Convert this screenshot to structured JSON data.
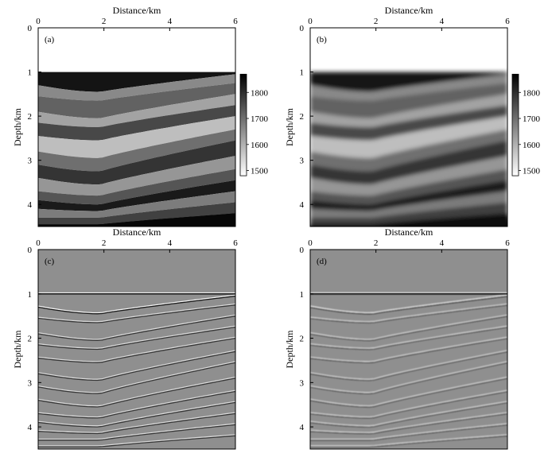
{
  "panels": [
    {
      "key": "a",
      "label": "(a)",
      "type": "velocity_model",
      "smooth": false,
      "show_x_title": true
    },
    {
      "key": "b",
      "label": "(b)",
      "type": "velocity_model",
      "smooth": true,
      "show_x_title": true
    },
    {
      "key": "c",
      "label": "(c)",
      "type": "migration_image",
      "smooth": false,
      "show_x_title": true
    },
    {
      "key": "d",
      "label": "(d)",
      "type": "migration_image",
      "smooth": true,
      "show_x_title": true
    }
  ],
  "axes": {
    "xlabel": "Distance/km",
    "ylabel": "Depth/km",
    "xlim": [
      0,
      6
    ],
    "ylim": [
      0,
      4.5
    ],
    "xticks": [
      "0",
      "2",
      "4",
      "6"
    ],
    "yticks": [
      "0",
      "1",
      "2",
      "3",
      "4"
    ]
  },
  "colorbar": {
    "ticks": [
      "1800",
      "1700",
      "1600",
      "1500"
    ],
    "range": [
      1480,
      1870
    ]
  },
  "chart_data": {
    "type": "heatmap",
    "title": "",
    "xlabel": "Distance/km",
    "ylabel": "Depth/km",
    "xlim": [
      0,
      6
    ],
    "ylim": [
      0,
      4.5
    ],
    "water_bottom_depth_km": 1.0,
    "colorbar_range": [
      1480,
      1870
    ],
    "grid": false,
    "layers": [
      {
        "depth_left": 1.0,
        "depth_min": 1.0,
        "depth_right": 1.0,
        "value": 1840
      },
      {
        "depth_left": 1.3,
        "depth_min": 1.45,
        "depth_right": 1.05,
        "value": 1660
      },
      {
        "depth_left": 1.55,
        "depth_min": 1.65,
        "depth_right": 1.25,
        "value": 1720
      },
      {
        "depth_left": 1.9,
        "depth_min": 2.05,
        "depth_right": 1.5,
        "value": 1620
      },
      {
        "depth_left": 2.15,
        "depth_min": 2.25,
        "depth_right": 1.75,
        "value": 1760
      },
      {
        "depth_left": 2.45,
        "depth_min": 2.55,
        "depth_right": 2.0,
        "value": 1580
      },
      {
        "depth_left": 2.8,
        "depth_min": 2.95,
        "depth_right": 2.3,
        "value": 1700
      },
      {
        "depth_left": 3.1,
        "depth_min": 3.25,
        "depth_right": 2.55,
        "value": 1790
      },
      {
        "depth_left": 3.4,
        "depth_min": 3.55,
        "depth_right": 2.9,
        "value": 1640
      },
      {
        "depth_left": 3.7,
        "depth_min": 3.8,
        "depth_right": 3.2,
        "value": 1740
      },
      {
        "depth_left": 3.9,
        "depth_min": 4.0,
        "depth_right": 3.45,
        "value": 1830
      },
      {
        "depth_left": 4.1,
        "depth_min": 4.15,
        "depth_right": 3.7,
        "value": 1680
      },
      {
        "depth_left": 4.3,
        "depth_min": 4.3,
        "depth_right": 3.95,
        "value": 1770
      },
      {
        "depth_left": 4.45,
        "depth_min": 4.45,
        "depth_right": 4.2,
        "value": 1860
      }
    ]
  }
}
